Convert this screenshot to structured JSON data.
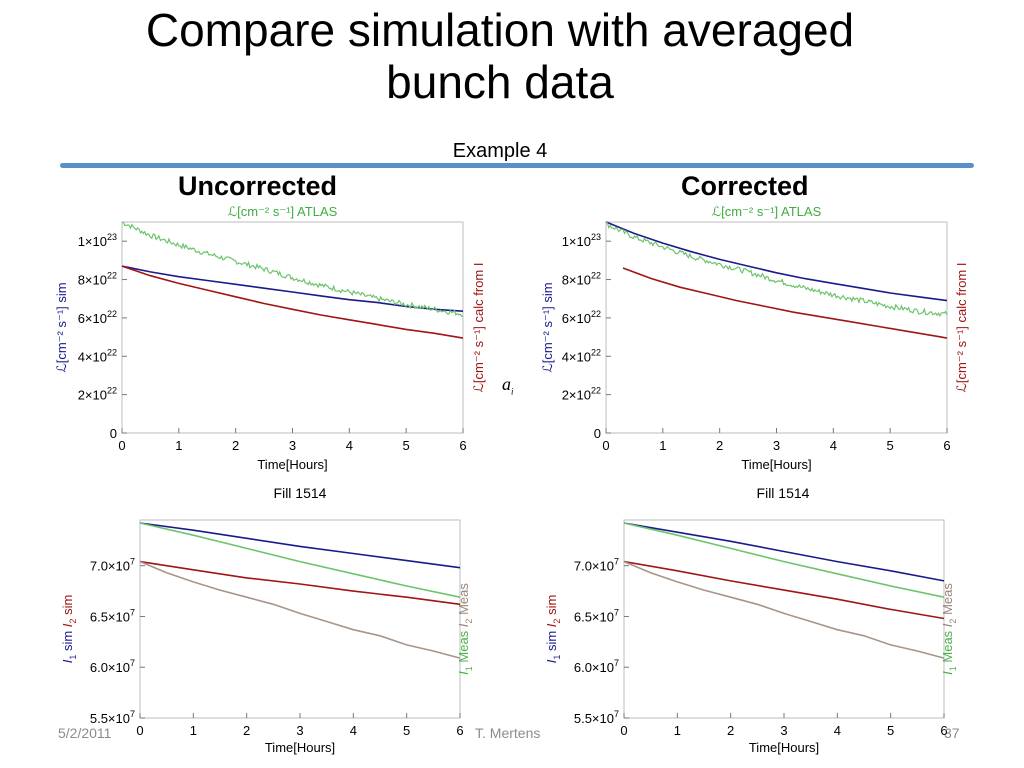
{
  "slide": {
    "title_line1": "Compare simulation with averaged",
    "title_line2": "bunch data",
    "subtitle": "Example 4",
    "heading_left": "Uncorrected",
    "heading_right": "Corrected",
    "footer_date": "5/2/2011",
    "footer_author": "T. Mertens",
    "footer_page": "37",
    "stray_symbol": "a",
    "stray_symbol_sub": "i"
  },
  "colors": {
    "sim": "#1a1a8c",
    "calc": "#a01515",
    "atlas": "#6cc46c",
    "meas2": "#a8958a",
    "accent_rule": "#5b8fc9"
  },
  "chart_data": [
    {
      "type": "line",
      "title": "Uncorrected",
      "top_label": "ℒ[cm⁻² s⁻¹] ATLAS",
      "xlabel": "Time[Hours]",
      "caption": "Fill 1514",
      "ylabel_left": "ℒ[cm⁻² s⁻¹] sim",
      "ylabel_right": "ℒ[cm⁻² s⁻¹] calc from I",
      "xlim": [
        0,
        6
      ],
      "ylim": [
        0,
        1.1e+23
      ],
      "x_ticks": [
        "0",
        "1",
        "2",
        "3",
        "4",
        "5",
        "6"
      ],
      "y_ticks": [
        {
          "value": 0,
          "mant": "0",
          "exp": ""
        },
        {
          "value": 2e+22,
          "mant": "2×10",
          "exp": "22"
        },
        {
          "value": 4e+22,
          "mant": "4×10",
          "exp": "22"
        },
        {
          "value": 6e+22,
          "mant": "6×10",
          "exp": "22"
        },
        {
          "value": 8e+22,
          "mant": "8×10",
          "exp": "22"
        },
        {
          "value": 1e+23,
          "mant": "1×10",
          "exp": "23"
        }
      ],
      "series": [
        {
          "name": "ℒ[cm⁻² s⁻¹] sim",
          "color": "#1a1a8c",
          "x": [
            0,
            0.5,
            1,
            1.5,
            2,
            2.5,
            3,
            3.5,
            4,
            4.5,
            5,
            5.5,
            6
          ],
          "y": [
            8.7e+22,
            8.4e+22,
            8.15e+22,
            7.95e+22,
            7.75e+22,
            7.55e+22,
            7.35e+22,
            7.15e+22,
            6.95e+22,
            6.8e+22,
            6.6e+22,
            6.45e+22,
            6.35e+22
          ]
        },
        {
          "name": "ℒ[cm⁻² s⁻¹] calc from I",
          "color": "#a01515",
          "x": [
            0,
            0.5,
            1,
            1.5,
            2,
            2.5,
            3,
            3.5,
            4,
            4.5,
            5,
            5.5,
            6
          ],
          "y": [
            8.7e+22,
            8.2e+22,
            7.8e+22,
            7.45e+22,
            7.1e+22,
            6.75e+22,
            6.45e+22,
            6.15e+22,
            5.9e+22,
            5.65e+22,
            5.4e+22,
            5.2e+22,
            4.95e+22
          ]
        },
        {
          "name": "ℒ[cm⁻² s⁻¹] ATLAS",
          "color": "#6cc46c",
          "noisy": true,
          "x": [
            0,
            0.5,
            1,
            1.5,
            2,
            2.5,
            3,
            3.5,
            4,
            4.5,
            5,
            5.5,
            6
          ],
          "y": [
            1.1e+23,
            1.03e+23,
            9.8e+22,
            9.35e+22,
            8.95e+22,
            8.55e+22,
            8.1e+22,
            7.7e+22,
            7.35e+22,
            7e+22,
            6.7e+22,
            6.45e+22,
            6.2e+22
          ]
        }
      ]
    },
    {
      "type": "line",
      "title": "Corrected",
      "top_label": "ℒ[cm⁻² s⁻¹] ATLAS",
      "xlabel": "Time[Hours]",
      "caption": "Fill 1514",
      "ylabel_left": "ℒ[cm⁻² s⁻¹] sim",
      "ylabel_right": "ℒ[cm⁻² s⁻¹] calc from I",
      "xlim": [
        0,
        6
      ],
      "ylim": [
        0,
        1.1e+23
      ],
      "x_ticks": [
        "0",
        "1",
        "2",
        "3",
        "4",
        "5",
        "6"
      ],
      "y_ticks": [
        {
          "value": 0,
          "mant": "0",
          "exp": ""
        },
        {
          "value": 2e+22,
          "mant": "2×10",
          "exp": "22"
        },
        {
          "value": 4e+22,
          "mant": "4×10",
          "exp": "22"
        },
        {
          "value": 6e+22,
          "mant": "6×10",
          "exp": "22"
        },
        {
          "value": 8e+22,
          "mant": "8×10",
          "exp": "22"
        },
        {
          "value": 1e+23,
          "mant": "1×10",
          "exp": "23"
        }
      ],
      "series": [
        {
          "name": "ℒ[cm⁻² s⁻¹] sim",
          "color": "#1a1a8c",
          "x": [
            0,
            0.5,
            1,
            1.5,
            2,
            2.5,
            3,
            3.5,
            4,
            4.5,
            5,
            5.5,
            6
          ],
          "y": [
            1.1e+23,
            1.04e+23,
            9.9e+22,
            9.45e+22,
            9.05e+22,
            8.7e+22,
            8.35e+22,
            8.05e+22,
            7.8e+22,
            7.55e+22,
            7.3e+22,
            7.1e+22,
            6.9e+22
          ]
        },
        {
          "name": "ℒ[cm⁻² s⁻¹] calc from I",
          "color": "#a01515",
          "x": [
            0.3,
            0.8,
            1.3,
            1.8,
            2.3,
            2.8,
            3.3,
            3.8,
            4.3,
            4.8,
            5.3,
            5.8,
            6
          ],
          "y": [
            8.6e+22,
            8.05e+22,
            7.6e+22,
            7.25e+22,
            6.9e+22,
            6.6e+22,
            6.3e+22,
            6.05e+22,
            5.8e+22,
            5.55e+22,
            5.3e+22,
            5.05e+22,
            4.95e+22
          ]
        },
        {
          "name": "ℒ[cm⁻² s⁻¹] ATLAS",
          "color": "#6cc46c",
          "noisy": true,
          "x": [
            0,
            0.5,
            1,
            1.5,
            2,
            2.5,
            3,
            3.5,
            4,
            4.5,
            5,
            5.5,
            6
          ],
          "y": [
            1.09e+23,
            1.02e+23,
            9.7e+22,
            9.2e+22,
            8.8e+22,
            8.4e+22,
            7.95e+22,
            7.55e+22,
            7.2e+22,
            6.9e+22,
            6.6e+22,
            6.35e+22,
            6.2e+22
          ]
        }
      ]
    },
    {
      "type": "line",
      "title": "Uncorrected",
      "xlabel": "Time[Hours]",
      "ylabel_left_parts": [
        {
          "t": "I",
          "sub": "1",
          "text": " sim",
          "color": "#1a1a8c"
        },
        {
          "t": "I",
          "sub": "2",
          "text": " sim",
          "color": "#a01515"
        }
      ],
      "ylabel_right_parts": [
        {
          "t": "I",
          "sub": "1",
          "text": " Meas",
          "color": "#4caf4c"
        },
        {
          "t": "I",
          "sub": "2",
          "text": " Meas",
          "color": "#9a8478"
        }
      ],
      "xlim": [
        0,
        6
      ],
      "ylim": [
        55000000.0,
        74500000.0
      ],
      "x_ticks": [
        "0",
        "1",
        "2",
        "3",
        "4",
        "5",
        "6"
      ],
      "y_ticks": [
        {
          "value": 55000000.0,
          "mant": "5.5×10",
          "exp": "7"
        },
        {
          "value": 60000000.0,
          "mant": "6.0×10",
          "exp": "7"
        },
        {
          "value": 65000000.0,
          "mant": "6.5×10",
          "exp": "7"
        },
        {
          "value": 70000000.0,
          "mant": "7.0×10",
          "exp": "7"
        }
      ],
      "series": [
        {
          "name": "I1 sim",
          "color": "#1a1a8c",
          "x": [
            0,
            1,
            2,
            3,
            4,
            5,
            6
          ],
          "y": [
            74200000.0,
            73500000.0,
            72700000.0,
            71900000.0,
            71200000.0,
            70500000.0,
            69800000.0
          ]
        },
        {
          "name": "I1 Meas",
          "color": "#6cc46c",
          "x": [
            0,
            1,
            2,
            3,
            4,
            5,
            6
          ],
          "y": [
            74200000.0,
            73000000.0,
            71700000.0,
            70400000.0,
            69200000.0,
            68000000.0,
            66900000.0
          ]
        },
        {
          "name": "I2 sim",
          "color": "#a01515",
          "x": [
            0,
            1,
            2,
            3,
            4,
            5,
            6
          ],
          "y": [
            70400000.0,
            69600000.0,
            68800000.0,
            68200000.0,
            67500000.0,
            66900000.0,
            66200000.0
          ]
        },
        {
          "name": "I2 Meas",
          "color": "#a8958a",
          "x": [
            0,
            0.5,
            1,
            1.5,
            2,
            2.5,
            3,
            3.5,
            4,
            4.5,
            5,
            5.5,
            6
          ],
          "y": [
            70400000.0,
            69300000.0,
            68400000.0,
            67600000.0,
            66900000.0,
            66200000.0,
            65300000.0,
            64500000.0,
            63700000.0,
            63100000.0,
            62200000.0,
            61600000.0,
            60900000.0
          ]
        }
      ]
    },
    {
      "type": "line",
      "title": "Corrected",
      "xlabel": "Time[Hours]",
      "ylabel_left_parts": [
        {
          "t": "I",
          "sub": "1",
          "text": " sim",
          "color": "#1a1a8c"
        },
        {
          "t": "I",
          "sub": "2",
          "text": " sim",
          "color": "#a01515"
        }
      ],
      "ylabel_right_parts": [
        {
          "t": "I",
          "sub": "1",
          "text": " Meas",
          "color": "#4caf4c"
        },
        {
          "t": "I",
          "sub": "2",
          "text": " Meas",
          "color": "#9a8478"
        }
      ],
      "xlim": [
        0,
        6
      ],
      "ylim": [
        55000000.0,
        74500000.0
      ],
      "x_ticks": [
        "0",
        "1",
        "2",
        "3",
        "4",
        "5",
        "6"
      ],
      "y_ticks": [
        {
          "value": 55000000.0,
          "mant": "5.5×10",
          "exp": "7"
        },
        {
          "value": 60000000.0,
          "mant": "6.0×10",
          "exp": "7"
        },
        {
          "value": 65000000.0,
          "mant": "6.5×10",
          "exp": "7"
        },
        {
          "value": 70000000.0,
          "mant": "7.0×10",
          "exp": "7"
        }
      ],
      "series": [
        {
          "name": "I1 sim",
          "color": "#1a1a8c",
          "x": [
            0,
            1,
            2,
            3,
            4,
            5,
            6
          ],
          "y": [
            74200000.0,
            73300000.0,
            72400000.0,
            71400000.0,
            70400000.0,
            69500000.0,
            68500000.0
          ]
        },
        {
          "name": "I1 Meas",
          "color": "#6cc46c",
          "x": [
            0,
            1,
            2,
            3,
            4,
            5,
            6
          ],
          "y": [
            74200000.0,
            73000000.0,
            71700000.0,
            70400000.0,
            69200000.0,
            68000000.0,
            66900000.0
          ]
        },
        {
          "name": "I2 sim",
          "color": "#a01515",
          "x": [
            0,
            1,
            2,
            3,
            4,
            5,
            6
          ],
          "y": [
            70400000.0,
            69500000.0,
            68500000.0,
            67600000.0,
            66700000.0,
            65700000.0,
            64800000.0
          ]
        },
        {
          "name": "I2 Meas",
          "color": "#a8958a",
          "x": [
            0,
            0.5,
            1,
            1.5,
            2,
            2.5,
            3,
            3.5,
            4,
            4.5,
            5,
            5.5,
            6
          ],
          "y": [
            70400000.0,
            69300000.0,
            68400000.0,
            67600000.0,
            66900000.0,
            66200000.0,
            65300000.0,
            64500000.0,
            63700000.0,
            63100000.0,
            62200000.0,
            61600000.0,
            60900000.0
          ]
        }
      ]
    }
  ]
}
